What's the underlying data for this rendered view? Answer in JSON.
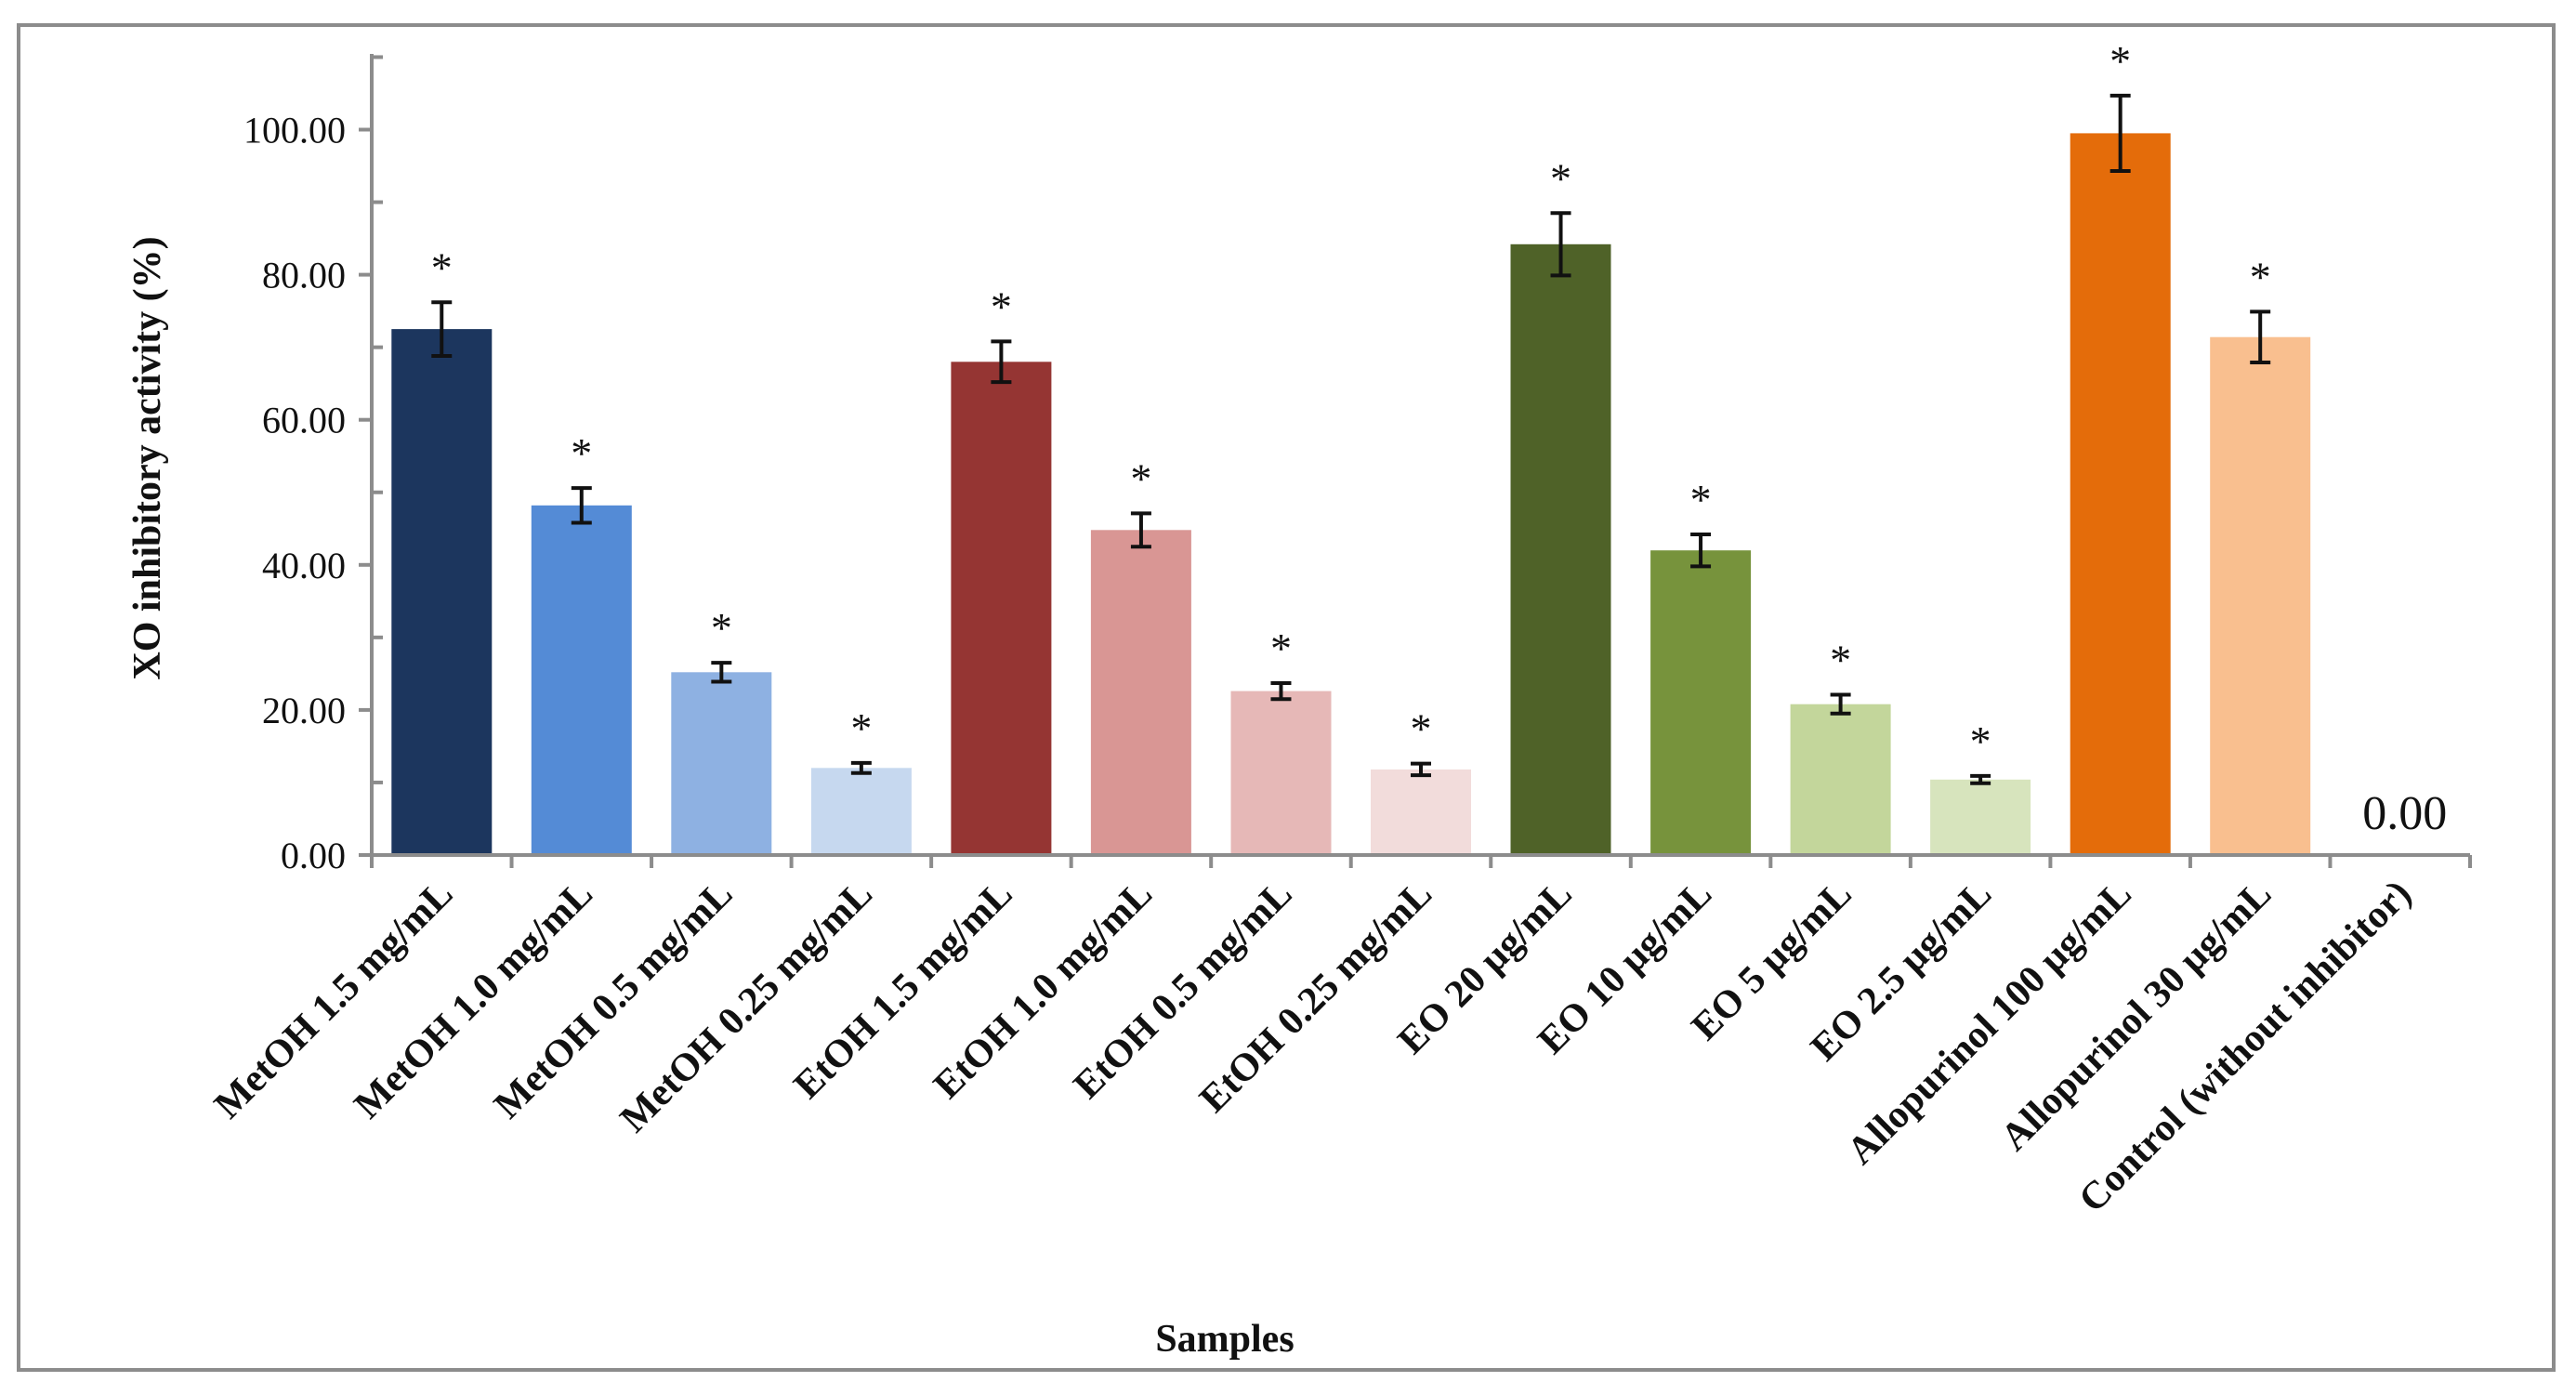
{
  "chart_data": {
    "type": "bar",
    "title": "",
    "xlabel": "Samples",
    "ylabel": "XO inhibitory activity (%)",
    "ylim": [
      0,
      110
    ],
    "yticks": [
      0,
      20,
      40,
      60,
      80,
      100
    ],
    "ytick_labels": [
      "0.00",
      "20.00",
      "40.00",
      "60.00",
      "80.00",
      "100.00"
    ],
    "grid": false,
    "legend": "none",
    "categories": [
      "MetOH 1.5 mg/mL",
      "MetOH 1.0 mg/mL",
      "MetOH 0.5 mg/mL",
      "MetOH 0.25 mg/mL",
      "EtOH 1.5 mg/mL",
      "EtOH 1.0 mg/mL",
      "EtOH 0.5 mg/mL",
      "EtOH 0.25 mg/mL",
      "EO 20 µg/mL",
      "EO 10 µg/mL",
      "EO 5 µg/mL",
      "EO 2.5 µg/mL",
      "Allopurinol 100 µg/mL",
      "Allopurinol 30 µg/mL",
      "Control (without inhibitor)"
    ],
    "values": [
      72.5,
      48.2,
      25.2,
      12.0,
      68.0,
      44.8,
      22.6,
      11.8,
      84.2,
      42.0,
      20.8,
      10.4,
      99.5,
      71.4,
      0.0
    ],
    "errors": [
      3.7,
      2.4,
      1.3,
      0.7,
      2.8,
      2.3,
      1.1,
      0.8,
      4.3,
      2.2,
      1.3,
      0.5,
      5.2,
      3.5,
      0.0
    ],
    "significance": [
      "*",
      "*",
      "*",
      "*",
      "*",
      "*",
      "*",
      "*",
      "*",
      "*",
      "*",
      "*",
      "*",
      "*",
      ""
    ],
    "colors": [
      "#1c365e",
      "#548bd6",
      "#8eb1e2",
      "#c6d8ef",
      "#953533",
      "#d99694",
      "#e6b8b7",
      "#f2dcdb",
      "#4f6228",
      "#77933c",
      "#c3d69b",
      "#d7e4bd",
      "#e46c0a",
      "#f9bf8f",
      "#ffffff"
    ],
    "value_labels": [
      "",
      "",
      "",
      "",
      "",
      "",
      "",
      "",
      "",
      "",
      "",
      "",
      "",
      "",
      "0.00"
    ]
  },
  "colors": {
    "axis": "#8c8c8c",
    "error_bar": "#111111",
    "text": "#111111"
  }
}
